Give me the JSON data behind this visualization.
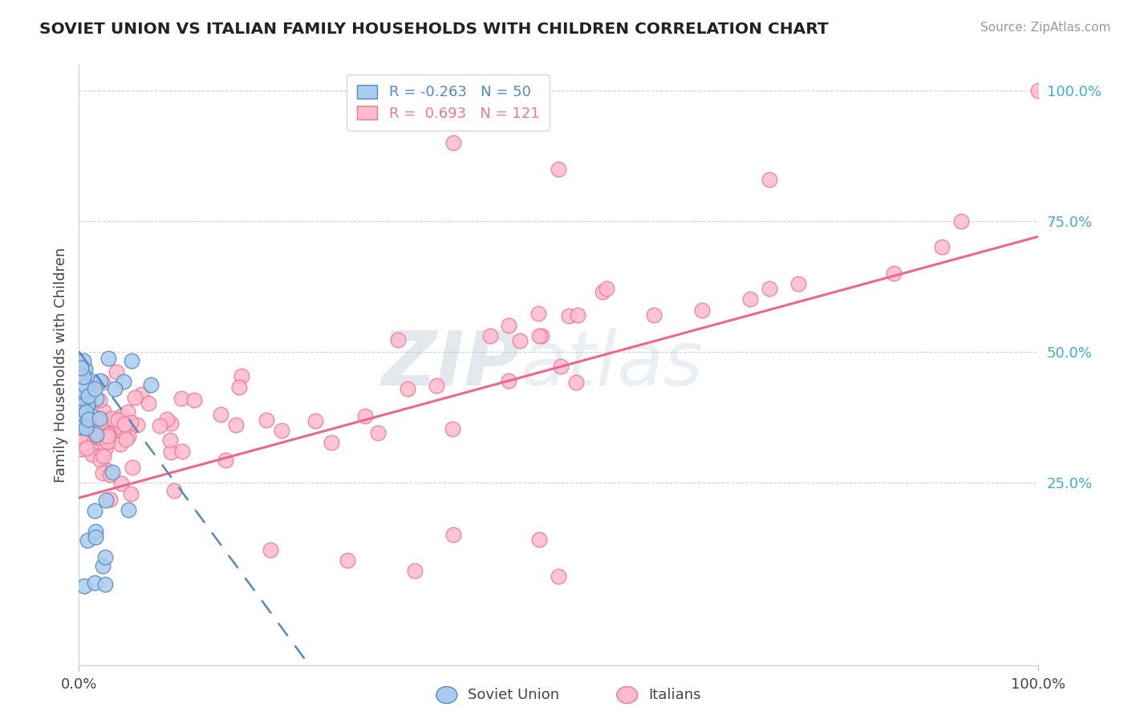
{
  "title": "SOVIET UNION VS ITALIAN FAMILY HOUSEHOLDS WITH CHILDREN CORRELATION CHART",
  "source": "Source: ZipAtlas.com",
  "ylabel": "Family Households with Children",
  "right_yticks": [
    "100.0%",
    "75.0%",
    "50.0%",
    "25.0%"
  ],
  "right_ytick_vals": [
    1.0,
    0.75,
    0.5,
    0.25
  ],
  "legend_soviet": "Soviet Union",
  "legend_italian": "Italians",
  "R_soviet": -0.263,
  "N_soviet": 50,
  "R_italian": 0.693,
  "N_italian": 121,
  "color_soviet_fill": "#AACCEE",
  "color_soviet_edge": "#5588BB",
  "color_italian_fill": "#FFBBCC",
  "color_italian_edge": "#EE7799",
  "color_soviet_line": "#5588BB",
  "color_italian_line": "#EE6688",
  "background_color": "#FFFFFF",
  "xlim": [
    0.0,
    1.0
  ],
  "ylim": [
    -0.1,
    1.05
  ],
  "grid_color": "#CCCCCC",
  "tick_color": "#999999",
  "title_color": "#222222",
  "source_color": "#999999",
  "right_axis_color": "#44AACC"
}
